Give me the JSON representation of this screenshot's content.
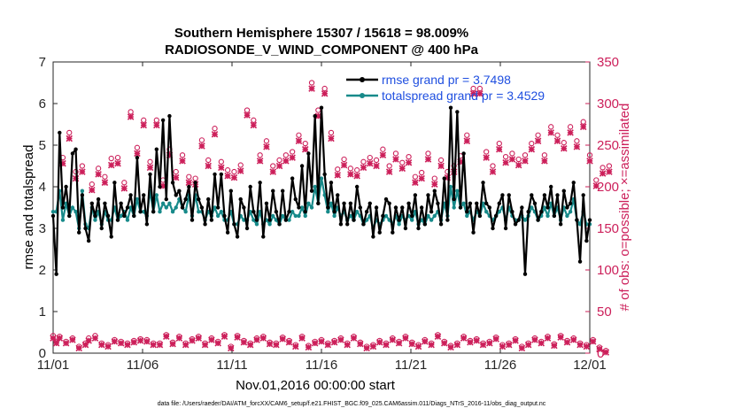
{
  "chart_data": {
    "type": "line",
    "title": "Southern Hemisphere 15307 / 15618 = 98.009%",
    "subtitle": "RADIOSONDE_V_WIND_COMPONENT @ 400 hPa",
    "xlabel": "Nov.01,2016 00:00:00 start",
    "ylabel_left": "rmse and totalspread",
    "ylabel_right": "# of obs: o=possible; ×=assimilated",
    "footer": "data file: /Users/raeder/DAI/ATM_forcXX/CAM6_setup/f.e21.FHIST_BGC.f09_025.CAM6assim.011/Diags_NTrS_2016-11/obs_diag_output.nc",
    "xlim": [
      0,
      30
    ],
    "ylim_left": [
      0,
      7
    ],
    "ylim_right": [
      0,
      350
    ],
    "x_ticks": [
      0,
      5,
      10,
      15,
      20,
      25,
      30
    ],
    "x_tick_labels": [
      "11/01",
      "11/06",
      "11/11",
      "11/16",
      "11/21",
      "11/26",
      "12/01"
    ],
    "y_left_ticks": [
      "0",
      "1",
      "2",
      "3",
      "4",
      "5",
      "6",
      "7"
    ],
    "y_right_ticks": [
      "0",
      "50",
      "100",
      "150",
      "200",
      "250",
      "300",
      "350"
    ],
    "colors": {
      "rmse": "#000000",
      "spread": "#178a8a",
      "obs": "#cc1f5a",
      "legend_text": "#1f4fe0"
    },
    "legend": [
      {
        "label": "rmse grand pr = 3.7498",
        "series": "rmse"
      },
      {
        "label": "totalspread grand pr = 3.4529",
        "series": "spread"
      }
    ],
    "series": [
      {
        "name": "rmse",
        "axis": "left",
        "values": [
          3.3,
          1.9,
          5.3,
          3.5,
          4.0,
          3.3,
          4.8,
          4.9,
          2.9,
          3.8,
          3.0,
          2.7,
          3.6,
          3.3,
          3.7,
          3.0,
          3.6,
          3.3,
          2.8,
          4.1,
          3.2,
          3.6,
          3.3,
          3.5,
          3.8,
          3.3,
          4.7,
          3.4,
          3.8,
          3.1,
          4.3,
          3.4,
          4.9,
          4.0,
          5.6,
          3.7,
          5.7,
          4.1,
          3.8,
          3.9,
          3.5,
          3.7,
          4.0,
          3.2,
          4.1,
          3.7,
          3.5,
          3.1,
          3.7,
          3.2,
          4.3,
          3.5,
          4.3,
          3.3,
          2.9,
          3.9,
          3.1,
          2.8,
          3.7,
          3.5,
          3.0,
          4.0,
          3.4,
          3.2,
          4.1,
          2.8,
          3.6,
          3.2,
          3.9,
          3.4,
          3.1,
          3.9,
          3.2,
          3.4,
          4.2,
          3.7,
          3.5,
          4.5,
          3.4,
          4.8,
          3.9,
          5.7,
          3.6,
          5.9,
          4.3,
          3.5,
          4.1,
          3.4,
          3.8,
          3.1,
          3.6,
          3.1,
          3.6,
          3.2,
          4.0,
          3.5,
          3.1,
          3.4,
          3.6,
          2.8,
          3.5,
          2.9,
          3.3,
          3.7,
          3.6,
          2.9,
          3.5,
          3.2,
          3.5,
          3.0,
          3.6,
          3.3,
          3.8,
          3.0,
          3.5,
          3.1,
          3.8,
          3.4,
          3.9,
          3.6,
          3.1,
          4.2,
          3.2,
          5.9,
          3.7,
          5.8,
          3.5,
          4.8,
          3.4,
          3.6,
          2.9,
          3.6,
          3.3,
          4.1,
          3.6,
          3.5,
          3.0,
          3.3,
          3.6,
          3.8,
          3.0,
          3.8,
          3.4,
          3.1,
          3.2,
          3.5,
          1.9,
          3.4,
          3.8,
          3.6,
          3.2,
          3.4,
          3.8,
          3.5,
          4.0,
          3.3,
          3.8,
          3.1,
          3.9,
          3.5,
          3.6,
          4.1,
          3.2,
          2.2,
          3.8,
          2.7,
          3.2
        ]
      },
      {
        "name": "totalspread",
        "axis": "left",
        "values": [
          3.4,
          3.4,
          3.9,
          3.2,
          3.6,
          3.3,
          3.5,
          3.4,
          3.0,
          3.9,
          3.1,
          3.0,
          3.5,
          3.2,
          3.4,
          3.1,
          3.4,
          3.2,
          3.2,
          3.5,
          3.2,
          3.3,
          3.4,
          3.2,
          3.5,
          3.3,
          3.7,
          3.4,
          3.4,
          3.3,
          3.9,
          3.4,
          3.8,
          3.4,
          3.6,
          3.5,
          3.6,
          3.4,
          3.5,
          3.7,
          3.5,
          3.4,
          3.8,
          3.3,
          3.8,
          3.4,
          3.4,
          3.2,
          3.4,
          3.3,
          3.5,
          3.3,
          3.4,
          3.2,
          3.2,
          3.4,
          3.1,
          3.1,
          3.3,
          3.2,
          3.2,
          3.4,
          3.2,
          3.1,
          3.4,
          3.1,
          3.2,
          3.1,
          3.3,
          3.2,
          3.1,
          3.3,
          3.2,
          3.2,
          3.4,
          3.3,
          3.3,
          3.5,
          3.3,
          3.6,
          3.5,
          4.0,
          3.6,
          4.2,
          3.8,
          3.4,
          3.6,
          3.3,
          3.5,
          3.3,
          3.4,
          3.2,
          3.3,
          3.2,
          3.4,
          3.3,
          3.1,
          3.2,
          3.3,
          3.0,
          3.2,
          3.1,
          3.2,
          3.3,
          3.2,
          3.1,
          3.3,
          3.1,
          3.3,
          3.2,
          3.3,
          3.2,
          3.4,
          3.1,
          3.2,
          3.1,
          3.3,
          3.2,
          3.3,
          3.4,
          3.2,
          3.6,
          3.3,
          4.0,
          3.5,
          3.9,
          3.5,
          3.6,
          3.3,
          3.4,
          3.2,
          3.4,
          3.3,
          3.6,
          3.4,
          3.3,
          3.2,
          3.3,
          3.4,
          3.5,
          3.2,
          3.5,
          3.3,
          3.2,
          3.2,
          3.3,
          3.2,
          3.3,
          3.5,
          3.4,
          3.2,
          3.3,
          3.5,
          3.3,
          3.6,
          3.3,
          3.5,
          3.2,
          3.5,
          3.3,
          3.4,
          3.7,
          3.2,
          3.1,
          3.4,
          3.1,
          3.1
        ]
      },
      {
        "name": "obs_possible",
        "axis": "right",
        "marker": "o",
        "values": [
          21,
          14,
          20,
          235,
          14,
          265,
          18,
          218,
          8,
          225,
          12,
          18,
          203,
          21,
          222,
          12,
          212,
          10,
          234,
          16,
          235,
          14,
          205,
          12,
          290,
          15,
          247,
          17,
          280,
          16,
          230,
          12,
          280,
          12,
          208,
          22,
          245,
          13,
          218,
          20,
          238,
          12,
          212,
          17,
          210,
          20,
          256,
          12,
          232,
          18,
          270,
          14,
          230,
          22,
          220,
          8,
          218,
          21,
          226,
          15,
          292,
          12,
          280,
          18,
          238,
          20,
          255,
          13,
          225,
          12,
          232,
          19,
          238,
          15,
          242,
          10,
          262,
          20,
          252,
          9,
          325,
          14,
          292,
          16,
          318,
          12,
          265,
          15,
          221,
          18,
          233,
          12,
          222,
          20,
          220,
          13,
          230,
          8,
          235,
          10,
          232,
          15,
          245,
          12,
          225,
          18,
          240,
          14,
          229,
          20,
          236,
          13,
          212,
          10,
          217,
          16,
          240,
          12,
          210,
          22,
          232,
          14,
          218,
          9,
          225,
          12,
          237,
          20,
          262,
          15,
          318,
          17,
          318,
          12,
          242,
          14,
          225,
          19,
          252,
          10,
          236,
          12,
          240,
          17,
          233,
          8,
          238,
          12,
          252,
          18,
          262,
          14,
          238,
          20,
          272,
          11,
          262,
          21,
          253,
          15,
          272,
          18,
          255,
          12,
          278,
          10,
          238,
          16,
          208,
          7,
          223,
          3,
          225
        ]
      },
      {
        "name": "obs_assimilated",
        "axis": "right",
        "marker": "x",
        "values": [
          18,
          12,
          18,
          228,
          12,
          258,
          16,
          210,
          6,
          218,
          10,
          15,
          196,
          18,
          215,
          10,
          205,
          8,
          226,
          14,
          228,
          12,
          198,
          10,
          284,
          13,
          240,
          15,
          274,
          14,
          223,
          10,
          274,
          10,
          201,
          20,
          238,
          11,
          211,
          18,
          231,
          10,
          205,
          15,
          203,
          18,
          249,
          10,
          225,
          16,
          263,
          12,
          223,
          20,
          213,
          6,
          211,
          19,
          219,
          13,
          286,
          10,
          274,
          16,
          231,
          18,
          248,
          11,
          218,
          10,
          225,
          17,
          231,
          13,
          235,
          8,
          255,
          18,
          245,
          7,
          318,
          12,
          285,
          14,
          312,
          10,
          258,
          13,
          214,
          16,
          226,
          10,
          215,
          18,
          213,
          11,
          223,
          6,
          228,
          8,
          225,
          13,
          238,
          10,
          218,
          16,
          233,
          12,
          222,
          18,
          229,
          11,
          205,
          8,
          210,
          14,
          233,
          10,
          203,
          20,
          225,
          12,
          211,
          7,
          218,
          10,
          230,
          18,
          255,
          13,
          312,
          15,
          312,
          10,
          235,
          12,
          218,
          17,
          245,
          8,
          229,
          10,
          233,
          15,
          226,
          6,
          231,
          10,
          245,
          16,
          255,
          12,
          231,
          18,
          265,
          9,
          255,
          19,
          246,
          13,
          265,
          16,
          248,
          10,
          272,
          8,
          231,
          14,
          201,
          5,
          216,
          1,
          218
        ]
      }
    ]
  }
}
